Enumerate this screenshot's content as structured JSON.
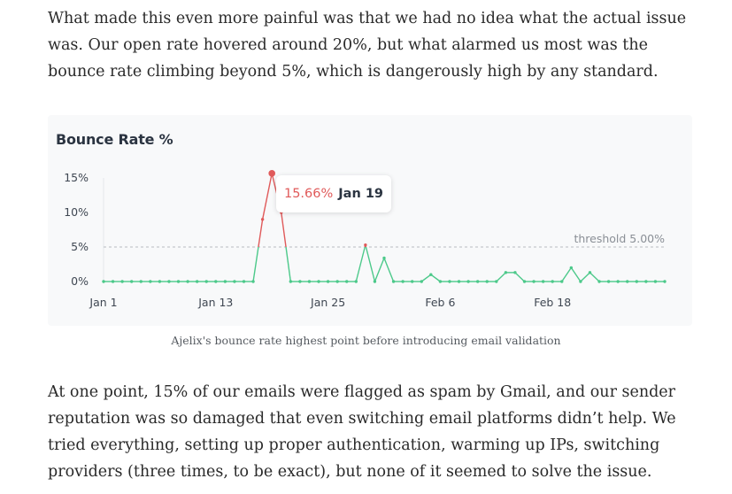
{
  "article": {
    "paragraph1": "What made this even more painful was that we had no idea what the actual issue was. Our open rate hovered around 20%, but what alarmed us most was the bounce rate climbing beyond 5%, which is dangerously high by any standard.",
    "paragraph2": "At one point, 15% of our emails were flagged as spam by Gmail, and our sender reputation was so damaged that even switching email platforms didn’t help. We tried everything, setting up proper authentication, warming up IPs, switching providers (three times, to be exact), but none of it seemed to solve the issue.",
    "caption": "Ajelix's bounce rate highest point before introducing email validation"
  },
  "tooltip": {
    "value": "15.66%",
    "date": "Jan 19"
  },
  "chart_data": {
    "type": "line",
    "title": "Bounce Rate %",
    "xlabel": "",
    "ylabel": "",
    "ylim": [
      0,
      15
    ],
    "yticks": [
      "15%",
      "10%",
      "5%",
      "0%"
    ],
    "ytick_values": [
      15,
      10,
      5,
      0
    ],
    "xticks": [
      "Jan 1",
      "Jan 13",
      "Jan 25",
      "Feb 6",
      "Feb 18"
    ],
    "xtick_index": [
      0,
      12,
      24,
      36,
      48
    ],
    "threshold": {
      "value": 5.0,
      "label": "threshold 5.00%"
    },
    "x": [
      "Jan 1",
      "Jan 2",
      "Jan 3",
      "Jan 4",
      "Jan 5",
      "Jan 6",
      "Jan 7",
      "Jan 8",
      "Jan 9",
      "Jan 10",
      "Jan 11",
      "Jan 12",
      "Jan 13",
      "Jan 14",
      "Jan 15",
      "Jan 16",
      "Jan 17",
      "Jan 18",
      "Jan 19",
      "Jan 20",
      "Jan 21",
      "Jan 22",
      "Jan 23",
      "Jan 24",
      "Jan 25",
      "Jan 26",
      "Jan 27",
      "Jan 28",
      "Jan 29",
      "Jan 30",
      "Jan 31",
      "Feb 1",
      "Feb 2",
      "Feb 3",
      "Feb 4",
      "Feb 5",
      "Feb 6",
      "Feb 7",
      "Feb 8",
      "Feb 9",
      "Feb 10",
      "Feb 11",
      "Feb 12",
      "Feb 13",
      "Feb 14",
      "Feb 15",
      "Feb 16",
      "Feb 17",
      "Feb 18",
      "Feb 19",
      "Feb 20",
      "Feb 21",
      "Feb 22",
      "Feb 23",
      "Feb 24",
      "Feb 25",
      "Feb 26",
      "Feb 27",
      "Feb 28",
      "Feb 29",
      "Mar 1"
    ],
    "series": [
      {
        "values": [
          0,
          0,
          0,
          0,
          0,
          0,
          0,
          0,
          0,
          0,
          0,
          0,
          0,
          0,
          0,
          0,
          0,
          9.0,
          15.66,
          10.0,
          0,
          0,
          0,
          0,
          0,
          0,
          0,
          0,
          5.3,
          0,
          3.4,
          0,
          0,
          0,
          0,
          1.0,
          0,
          0,
          0,
          0,
          0,
          0,
          0,
          1.3,
          1.3,
          0,
          0,
          0,
          0,
          0,
          2.0,
          0,
          1.3,
          0,
          0,
          0,
          0,
          0,
          0,
          0,
          0
        ],
        "color": "#4cc98a",
        "over_threshold_color": "#e05a5a"
      }
    ]
  }
}
